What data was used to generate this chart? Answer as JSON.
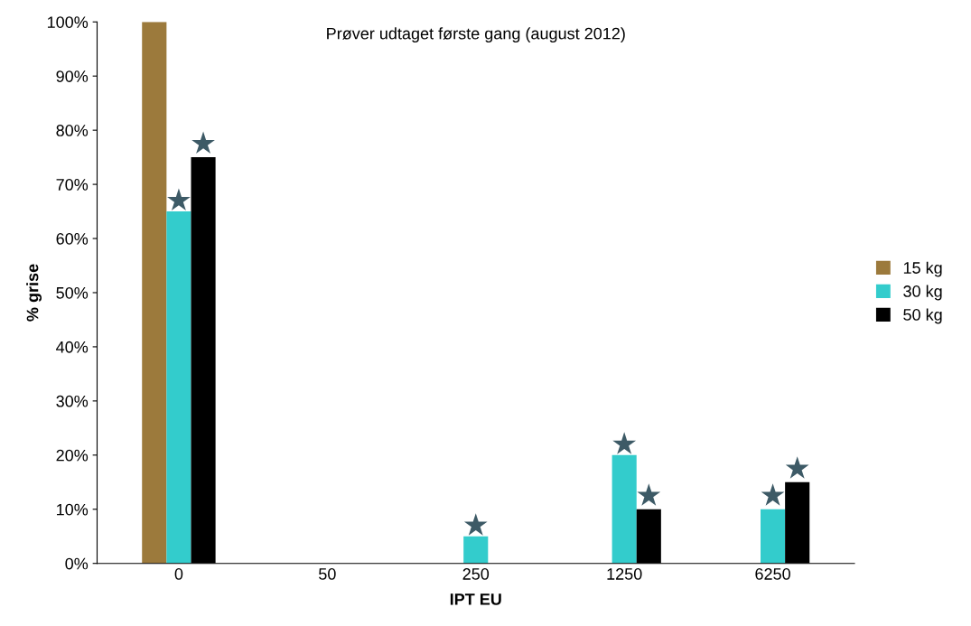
{
  "chart_data": {
    "type": "bar",
    "title": "Prøver udtaget første gang (august 2012)",
    "xlabel": "IPT EU",
    "ylabel": "% grise",
    "categories": [
      "0",
      "50",
      "250",
      "1250",
      "6250"
    ],
    "series": [
      {
        "name": "15 kg",
        "color": "#9c7a3c",
        "values": [
          100,
          0,
          0,
          0,
          0
        ]
      },
      {
        "name": "30 kg",
        "color": "#33cccc",
        "values": [
          65,
          0,
          5,
          20,
          10
        ]
      },
      {
        "name": "50 kg",
        "color": "#000000",
        "values": [
          75,
          0,
          0,
          10,
          15
        ]
      },
      {
        "type": "scatter",
        "color": "#3d5a66",
        "values": [
          null,
          null,
          null,
          null,
          null
        ]
      },
      {
        "type": "scatter",
        "color": "#3d5a66",
        "values": [
          67,
          null,
          7,
          22,
          12.5
        ]
      },
      {
        "type": "scatter",
        "color": "#3d5a66",
        "values": [
          77.5,
          null,
          null,
          12.5,
          17.5
        ]
      }
    ],
    "marker": "star",
    "ylim": [
      0,
      100
    ],
    "yticks": [
      {
        "value": 0,
        "label": "0%"
      },
      {
        "value": 10,
        "label": "10%"
      },
      {
        "value": 20,
        "label": "20%"
      },
      {
        "value": 30,
        "label": "30%"
      },
      {
        "value": 40,
        "label": "40%"
      },
      {
        "value": 50,
        "label": "50%"
      },
      {
        "value": 60,
        "label": "60%"
      },
      {
        "value": 70,
        "label": "70%"
      },
      {
        "value": 80,
        "label": "80%"
      },
      {
        "value": 90,
        "label": "90%"
      },
      {
        "value": 100,
        "label": "100%"
      }
    ],
    "grid": false,
    "legend": "right"
  }
}
